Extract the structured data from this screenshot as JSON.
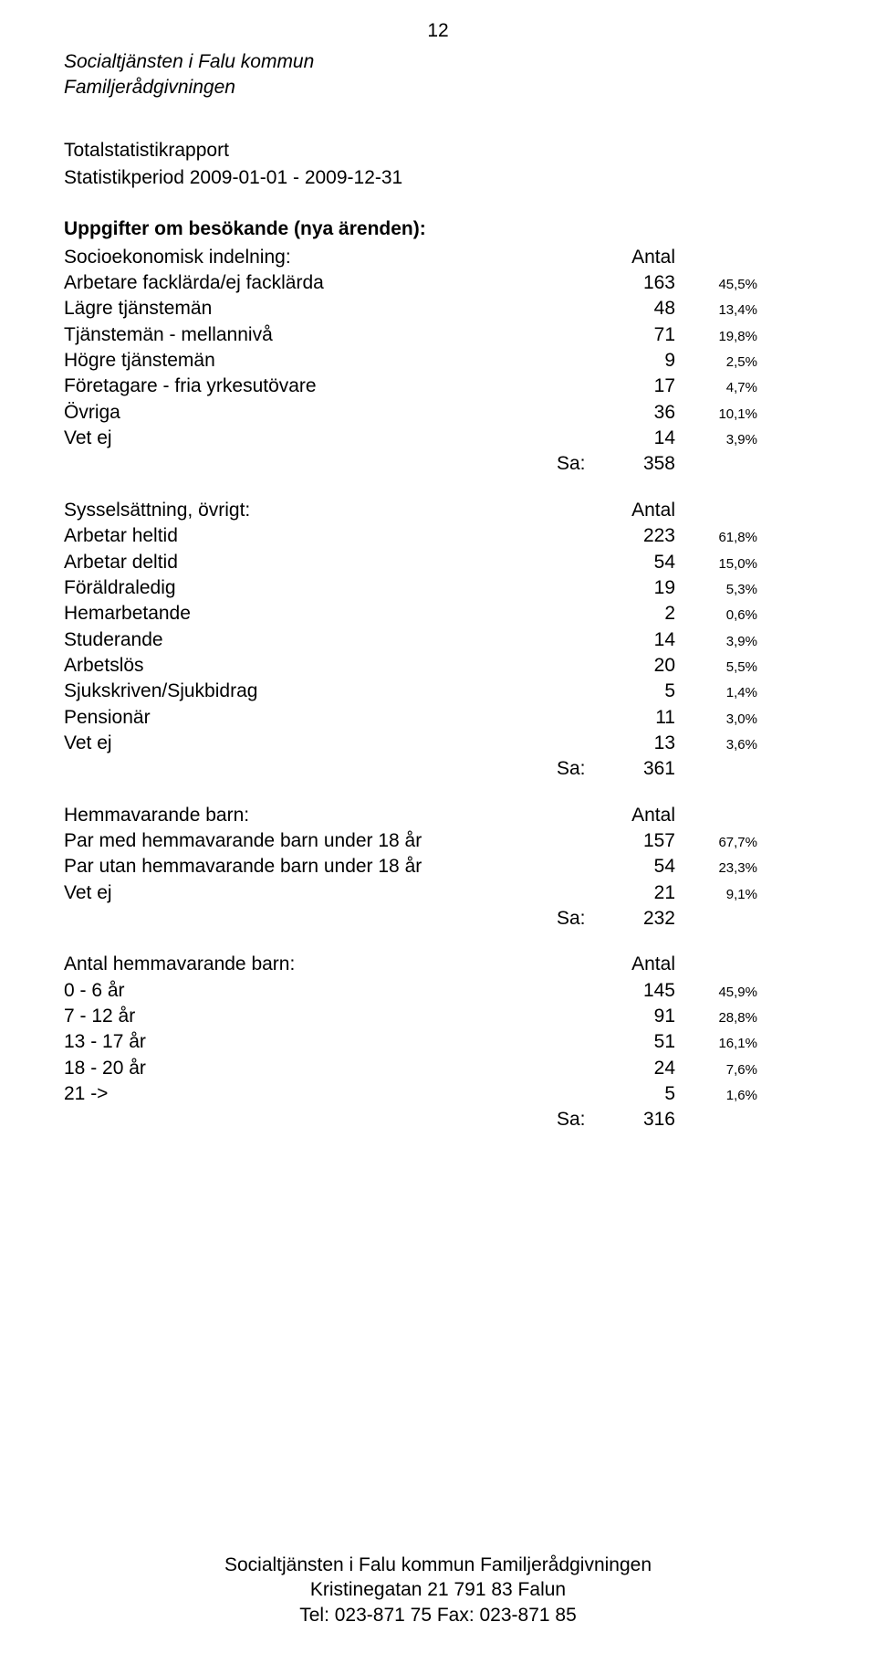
{
  "page_number": "12",
  "header": {
    "line1": "Socialtjänsten i Falu kommun",
    "line2": "Familjerådgivningen"
  },
  "report": {
    "title": "Totalstatistikrapport",
    "period": "Statistikperiod 2009-01-01 - 2009-12-31",
    "subject": "Uppgifter om besökande (nya ärenden):"
  },
  "labels": {
    "antal": "Antal",
    "sa": "Sa:"
  },
  "sections": [
    {
      "heading": "Socioekonomisk indelning:",
      "rows": [
        {
          "label": "Arbetare facklärda/ej facklärda",
          "value": "163",
          "pct": "45,5%"
        },
        {
          "label": "Lägre tjänstemän",
          "value": "48",
          "pct": "13,4%"
        },
        {
          "label": "Tjänstemän - mellannivå",
          "value": "71",
          "pct": "19,8%"
        },
        {
          "label": "Högre tjänstemän",
          "value": "9",
          "pct": "2,5%"
        },
        {
          "label": "Företagare - fria yrkesutövare",
          "value": "17",
          "pct": "4,7%"
        },
        {
          "label": "Övriga",
          "value": "36",
          "pct": "10,1%"
        },
        {
          "label": "Vet ej",
          "value": "14",
          "pct": "3,9%"
        }
      ],
      "total": "358"
    },
    {
      "heading": "Sysselsättning, övrigt:",
      "rows": [
        {
          "label": "Arbetar heltid",
          "value": "223",
          "pct": "61,8%"
        },
        {
          "label": "Arbetar deltid",
          "value": "54",
          "pct": "15,0%"
        },
        {
          "label": "Föräldraledig",
          "value": "19",
          "pct": "5,3%"
        },
        {
          "label": "Hemarbetande",
          "value": "2",
          "pct": "0,6%"
        },
        {
          "label": "Studerande",
          "value": "14",
          "pct": "3,9%"
        },
        {
          "label": "Arbetslös",
          "value": "20",
          "pct": "5,5%"
        },
        {
          "label": "Sjukskriven/Sjukbidrag",
          "value": "5",
          "pct": "1,4%"
        },
        {
          "label": "Pensionär",
          "value": "11",
          "pct": "3,0%"
        },
        {
          "label": "Vet ej",
          "value": "13",
          "pct": "3,6%"
        }
      ],
      "total": "361"
    },
    {
      "heading": "Hemmavarande barn:",
      "rows": [
        {
          "label": "Par med hemmavarande barn under 18 år",
          "value": "157",
          "pct": "67,7%"
        },
        {
          "label": "Par utan hemmavarande barn under 18 år",
          "value": "54",
          "pct": "23,3%"
        },
        {
          "label": "Vet ej",
          "value": "21",
          "pct": "9,1%"
        }
      ],
      "total": "232"
    },
    {
      "heading": "Antal hemmavarande barn:",
      "rows": [
        {
          "label": "0  -  6 år",
          "value": "145",
          "pct": "45,9%"
        },
        {
          "label": "7  - 12 år",
          "value": "91",
          "pct": "28,8%"
        },
        {
          "label": "13 - 17 år",
          "value": "51",
          "pct": "16,1%"
        },
        {
          "label": "18 - 20 år",
          "value": "24",
          "pct": "7,6%"
        },
        {
          "label": "21 ->",
          "value": "5",
          "pct": "1,6%"
        }
      ],
      "total": "316"
    }
  ],
  "footer": {
    "line1": "Socialtjänsten i Falu kommun Familjerådgivningen",
    "line2": "Kristinegatan 21   791 83 Falun",
    "line3": "Tel: 023-871 75     Fax: 023-871 85"
  }
}
